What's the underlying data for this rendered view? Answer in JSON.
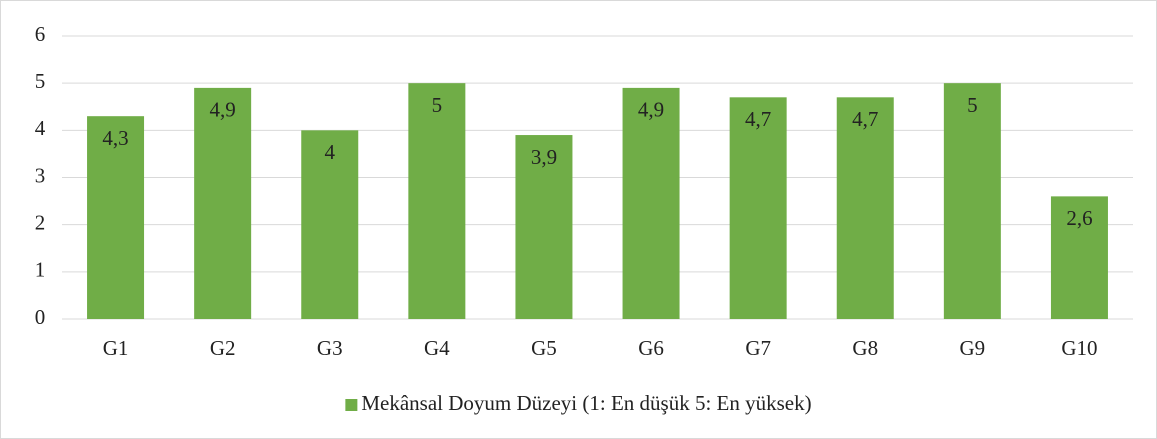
{
  "chart_data": {
    "type": "bar",
    "categories": [
      "G1",
      "G2",
      "G3",
      "G4",
      "G5",
      "G6",
      "G7",
      "G8",
      "G9",
      "G10"
    ],
    "series": [
      {
        "name": "Mekânsal Doyum Düzeyi (1: En düşük 5: En yüksek)",
        "color": "#70ad47",
        "values": [
          4.3,
          4.9,
          4,
          5,
          3.9,
          4.9,
          4.7,
          4.7,
          5,
          2.6
        ],
        "value_labels": [
          "4,3",
          "4,9",
          "4",
          "5",
          "3,9",
          "4,9",
          "4,7",
          "4,7",
          "5",
          "2,6"
        ]
      }
    ],
    "ylim": [
      0,
      6
    ],
    "yticks": [
      0,
      1,
      2,
      3,
      4,
      5,
      6
    ],
    "grid": true,
    "legend": "bottom"
  }
}
